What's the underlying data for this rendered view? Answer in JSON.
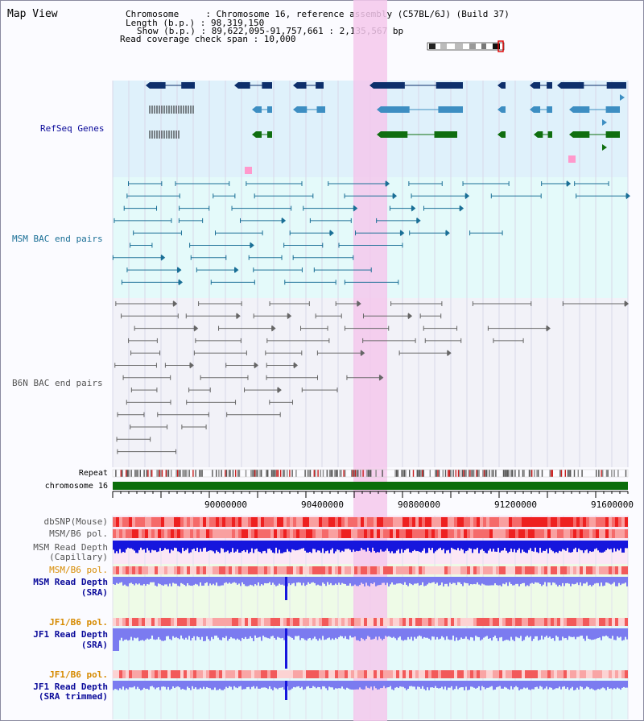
{
  "app_title": "Map View",
  "info": {
    "chromosome": "Chromosome     : Chromosome 16, reference assembly (C57BL/6J) (Build 37)",
    "length": "Length (b.p.) : 98,319,150",
    "show": "Show (b.p.) : 89,622,095-91,757,661 : 2,135,567 bp",
    "coverage": "Read coverage check span : 10,000"
  },
  "tracks": {
    "refseq": "RefSeq Genes",
    "msm_bac": "MSM BAC end pairs",
    "b6n_bac": "B6N BAC end pairs",
    "repeat": "Repeat",
    "chromosome": "chromosome 16",
    "dbsnp": "dbSNP(Mouse)",
    "msm_b6_pol_1": "MSM/B6 pol.",
    "msm_depth_cap_1": "MSM Read Depth",
    "msm_depth_cap_2": "(Capillary)",
    "msm_b6_pol_2": "MSM/B6 pol.",
    "msm_depth_sra_1": "MSM Read Depth",
    "msm_depth_sra_2": "(SRA)",
    "jf1_b6_pol_1": "JF1/B6 pol.",
    "jf1_depth_sra_1": "JF1 Read Depth",
    "jf1_depth_sra_2": "(SRA)",
    "jf1_b6_pol_2": "JF1/B6 pol.",
    "jf1_depth_trim_1": "JF1 Read Depth",
    "jf1_depth_trim_2": "(SRA trimmed)"
  },
  "axis_ticks": [
    "90000000",
    "90400000",
    "90800000",
    "91200000",
    "91600000"
  ],
  "colors": {
    "refseq_bg": "#dff1fb",
    "msm_bg": "#e4fafa",
    "highlight": "#f5c8ec",
    "chrom_bar": "#0a6e0a",
    "gene_dark": "#0d2f6b",
    "gene_mid": "#3d8ec2",
    "gene_green": "#0f6e0f",
    "msm_pair": "#1a6f96",
    "b6n_pair": "#666666",
    "depth_blue": "#1616dd",
    "depth_light": "#7b7bf0",
    "label_navy": "#0a0a9a",
    "label_teal": "#1a6f96",
    "label_gray": "#555555",
    "label_orange": "#d68a00"
  }
}
